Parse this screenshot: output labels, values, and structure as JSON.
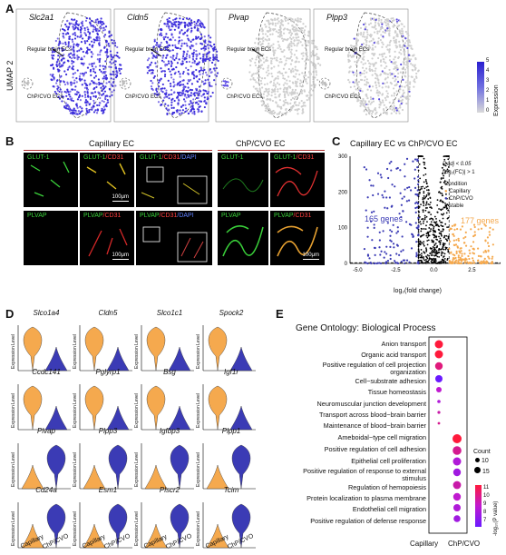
{
  "panels": {
    "A": "A",
    "B": "B",
    "C": "C",
    "D": "D",
    "E": "E"
  },
  "colors": {
    "capillary": "#f5a94e",
    "chp": "#3b3bb5",
    "umap_high": "#2a1fd0",
    "grey": "#d5d5d5"
  },
  "panelA": {
    "ylabel": "UMAP 2",
    "genes": [
      "Slc2a1",
      "Cldn5",
      "Plvap",
      "Plpp3"
    ],
    "regular": "Regular brain ECs",
    "chp": "ChP/CVO ECs",
    "colorbar_label": "Expression",
    "colorbar_ticks": [
      "5",
      "4",
      "3",
      "2",
      "1",
      "0"
    ]
  },
  "panelB": {
    "group_capillary": "Capillary EC",
    "group_chp": "ChP/CVO EC",
    "row1": {
      "glut": "GLUT-1",
      "glut_cd31_a": "GLUT-1",
      "glut_cd31_b": "/CD31",
      "glut_cd31_dapi_a": "GLUT-1",
      "glut_cd31_dapi_b": "/CD31",
      "glut_cd31_dapi_c": "/DAPI"
    },
    "row2": {
      "plvap": "PLVAP",
      "plvap_cd31_a": "PLVAP",
      "plvap_cd31_b": "/CD31",
      "plvap_cd31_dapi_a": "PLVAP",
      "plvap_cd31_dapi_b": "/CD31",
      "plvap_cd31_dapi_c": "/DAPI"
    },
    "scale": "100μm"
  },
  "panelC": {
    "title": "Capillary EC vs ChP/CVO EC",
    "xlabel": "log₂(fold change)",
    "threshold1": "P.adj < 0.05",
    "threshold2": "|log₂(FC)| > 1",
    "legend_title": "Condition",
    "legend_items": [
      "Capillary",
      "ChP/CVO",
      "stable"
    ],
    "left_count": "165 genes",
    "right_count": "177 genes",
    "yticks": [
      "300",
      "200",
      "100",
      "0"
    ],
    "xticks": [
      "-5.0",
      "-2.5",
      "0.0",
      "2.5"
    ]
  },
  "panelD": {
    "genes": [
      "Slco1a4",
      "Cldn5",
      "Slco1c1",
      "Spock2",
      "Ccdc141",
      "Pglyrp1",
      "Bsg",
      "Igf1r",
      "Plvap",
      "Plpp3",
      "Igfbp3",
      "Plpp1",
      "Cd24a",
      "Esm1",
      "Plscr2",
      "Tcim"
    ],
    "ylabel": "Expression Level",
    "xcat": [
      "Capillary",
      "ChP/CVO"
    ]
  },
  "panelE": {
    "title": "Gene Ontology: Biological Process",
    "terms": [
      "Anion transport",
      "Organic acid transport",
      "Positive regulation of cell projection",
      "organization",
      "Cell−substrate adhesion",
      "Tissue homeostasis",
      "Neuromuscular junction development",
      "Transport across blood−brain barrier",
      "Maintenance of blood−brain barrier",
      "Ameboidal−type cell migration",
      "Positive regulation of cell adhesion",
      "Epithelial cell proliferation",
      "Positive regulation of response to external",
      "stimulus",
      "Regulation of hemopoiesis",
      "Protein localization to plasma membrane",
      "Endothelial cell migration",
      "Positive regulation of defense response"
    ],
    "xcat": [
      "Capillary",
      "ChP/CVO"
    ],
    "count_title": "Count",
    "count_ticks": [
      "10",
      "15"
    ],
    "pval_title": "-log₁₀(P value)",
    "pval_ticks": [
      "11",
      "10",
      "9",
      "8",
      "7"
    ]
  }
}
